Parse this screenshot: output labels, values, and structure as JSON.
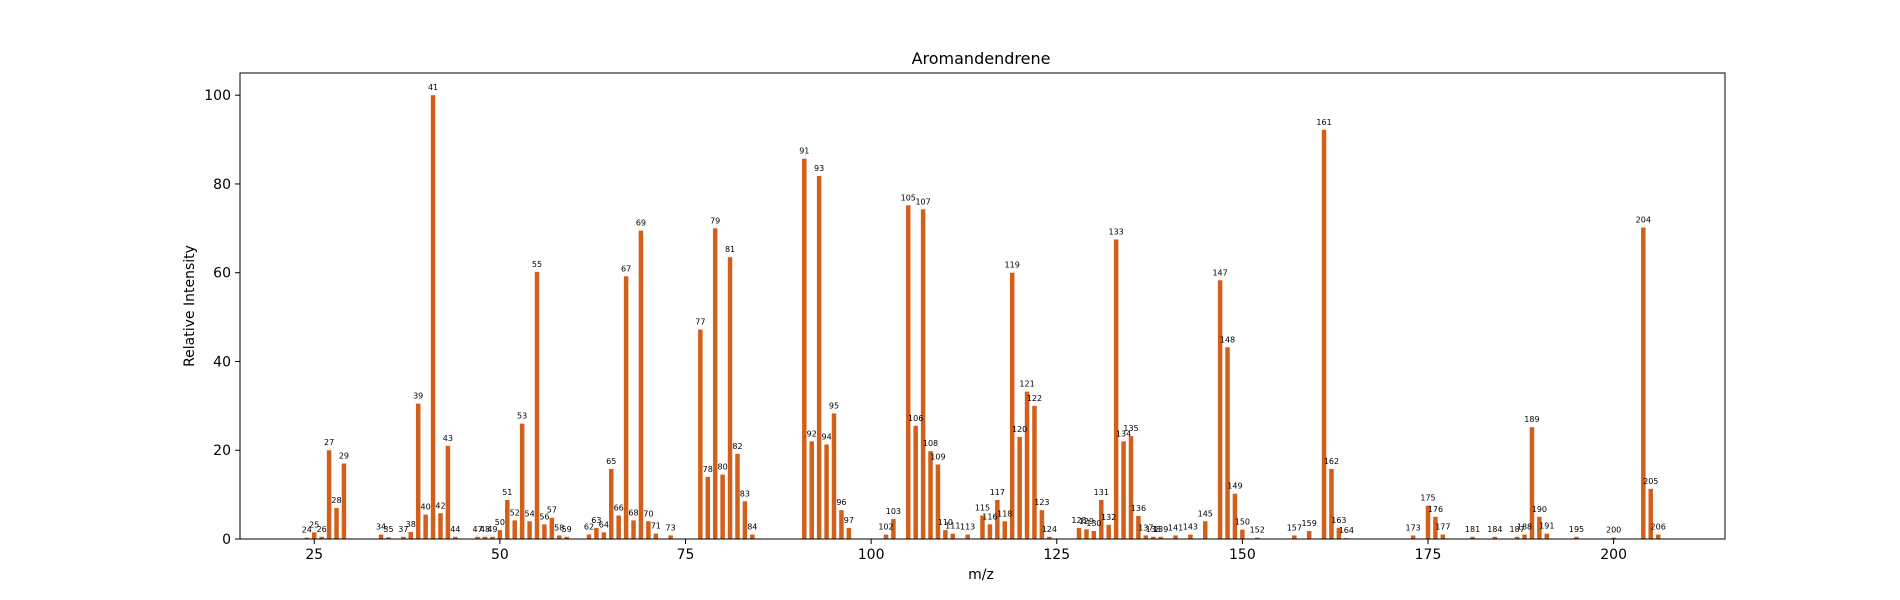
{
  "chart_data": {
    "type": "bar",
    "title": "Aromandendrene",
    "xlabel": "m/z",
    "ylabel": "Relative Intensity",
    "xlim": [
      15,
      215
    ],
    "ylim": [
      0,
      105
    ],
    "xticks": [
      25,
      50,
      75,
      100,
      125,
      150,
      175,
      200
    ],
    "yticks": [
      0,
      20,
      40,
      60,
      80,
      100
    ],
    "bar_color": "#d2601a",
    "grid": false,
    "legend": "none",
    "x": [
      24,
      25,
      26,
      27,
      28,
      29,
      34,
      35,
      37,
      38,
      39,
      40,
      41,
      42,
      43,
      44,
      47,
      48,
      49,
      50,
      51,
      52,
      53,
      54,
      55,
      56,
      57,
      58,
      59,
      62,
      63,
      64,
      65,
      66,
      67,
      68,
      69,
      70,
      71,
      73,
      77,
      78,
      79,
      80,
      81,
      82,
      83,
      84,
      91,
      92,
      93,
      94,
      95,
      96,
      97,
      102,
      103,
      105,
      106,
      107,
      108,
      109,
      110,
      111,
      113,
      115,
      116,
      117,
      118,
      119,
      120,
      121,
      122,
      123,
      124,
      128,
      129,
      130,
      131,
      132,
      133,
      134,
      135,
      136,
      137,
      138,
      139,
      141,
      143,
      145,
      147,
      148,
      149,
      150,
      152,
      157,
      159,
      161,
      162,
      163,
      164,
      173,
      175,
      176,
      177,
      181,
      184,
      187,
      188,
      189,
      190,
      191,
      195,
      200,
      204,
      205,
      206
    ],
    "values": [
      0.3,
      1.5,
      0.5,
      20,
      7,
      17,
      1,
      0.4,
      0.5,
      1.6,
      30.5,
      5.5,
      100,
      5.8,
      21,
      0.5,
      0.5,
      0.5,
      0.5,
      2,
      8.8,
      4.2,
      26,
      4,
      60.2,
      3.3,
      4.8,
      0.8,
      0.5,
      1,
      2.5,
      1.5,
      15.8,
      5.3,
      59.2,
      4.2,
      69.5,
      4,
      1.2,
      0.8,
      47.2,
      14,
      70,
      14.5,
      63.5,
      19.2,
      8.5,
      1,
      85.7,
      22,
      81.8,
      21.3,
      28.3,
      6.5,
      2.5,
      1,
      4.5,
      75.2,
      25.5,
      74.3,
      19.8,
      16.8,
      2,
      1.2,
      1,
      5.3,
      3.3,
      8.8,
      4,
      60,
      23,
      33.2,
      30,
      6.5,
      0.5,
      2.5,
      2.2,
      1.8,
      8.8,
      3.2,
      67.5,
      22,
      23.2,
      5.2,
      0.8,
      0.5,
      0.5,
      0.8,
      1,
      4,
      58.3,
      43.2,
      10.2,
      2.1,
      0.3,
      0.8,
      1.8,
      92.2,
      15.8,
      2.5,
      0.2,
      0.8,
      7.5,
      5,
      1,
      0.5,
      0.5,
      0.5,
      1,
      25.2,
      5,
      1.2,
      0.5,
      0.3,
      70.2,
      11.3,
      1
    ]
  }
}
